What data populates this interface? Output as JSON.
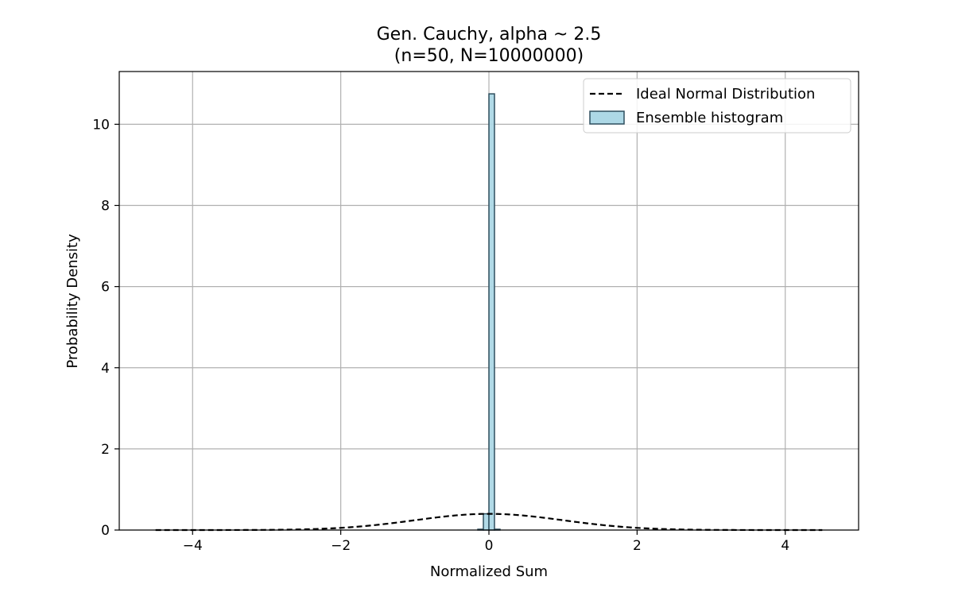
{
  "chart_data": {
    "type": "bar",
    "title_line1": "Gen. Cauchy, alpha ~ 2.5",
    "title_line2": "(n=50, N=10000000)",
    "xlabel": "Normalized Sum",
    "ylabel": "Probability Density",
    "xlim": [
      -4.99,
      4.99
    ],
    "ylim": [
      0,
      11.3
    ],
    "xticks": [
      -4,
      -2,
      0,
      2,
      4
    ],
    "yticks": [
      0,
      2,
      4,
      6,
      8,
      10
    ],
    "grid": true,
    "legend_position": "top-right",
    "histogram": {
      "name": "Ensemble histogram",
      "color": "#add8e6",
      "edge_color": "#2f4f5f",
      "bins": [
        {
          "x0": -0.15,
          "x1": -0.075,
          "value": 0.02
        },
        {
          "x0": -0.075,
          "x1": 0.0,
          "value": 0.4
        },
        {
          "x0": 0.0,
          "x1": 0.075,
          "value": 10.75
        },
        {
          "x0": 0.075,
          "x1": 0.15,
          "value": 0.02
        }
      ]
    },
    "normal_curve": {
      "name": "Ideal Normal Distribution",
      "color": "#000000",
      "style": "dashed",
      "x_range": [
        -4.5,
        4.5
      ],
      "mean": 0,
      "std": 1
    }
  }
}
